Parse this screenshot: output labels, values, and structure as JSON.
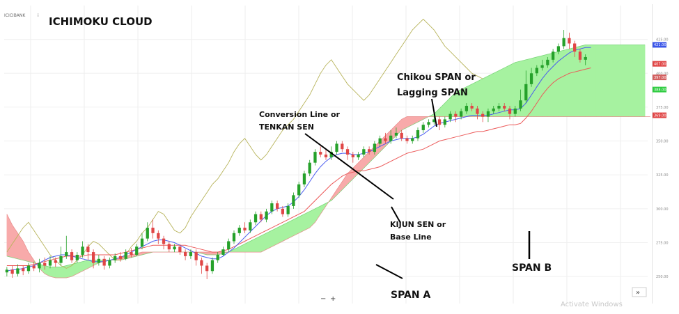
{
  "header": {
    "ticker": "ICICIBANK",
    "title": "ICHIMOKU CLOUD"
  },
  "annotations": {
    "chikou": [
      "Chikou SPAN or",
      "Lagging SPAN"
    ],
    "tenkan": [
      "Conversion Line or",
      "TENKAN SEN"
    ],
    "kijun": [
      "KIJUN SEN or",
      "Base Line"
    ],
    "span_a": "SPAN A",
    "span_b": "SPAN B"
  },
  "footer": {
    "watermark": "Activate Windows",
    "zoom_out": "−",
    "zoom_in": "+",
    "scroll_right": "»"
  },
  "colors": {
    "bullish_candle": "#25a12a",
    "bearish_candle": "#e04646",
    "conversion_line": "#4a5cf0",
    "base_line": "#ec5a5a",
    "lagging_line": "#b7b35a",
    "cloud_bullish": "#a6f2a0",
    "cloud_bearish": "#f8aaaa"
  },
  "chart_data": {
    "type": "candlestick",
    "title": "ICHIMOKU CLOUD",
    "y_range": [
      230,
      450
    ],
    "y_axis_ticks": [
      250,
      275,
      300,
      325,
      350,
      375,
      400,
      425
    ],
    "price_badges": [
      {
        "value": 421,
        "color": "#3b56e8"
      },
      {
        "value": 407,
        "color": "#e04646"
      },
      {
        "value": 397,
        "color": "#d35f5f"
      },
      {
        "value": 388,
        "color": "#2ecc40"
      },
      {
        "value": 369,
        "color": "#e04646"
      }
    ],
    "candles": [
      [
        253,
        255,
        250,
        257
      ],
      [
        255,
        252,
        249,
        258
      ],
      [
        252,
        256,
        250,
        259
      ],
      [
        256,
        254,
        251,
        258
      ],
      [
        254,
        258,
        252,
        260
      ],
      [
        258,
        256,
        254,
        261
      ],
      [
        256,
        260,
        253,
        263
      ],
      [
        260,
        258,
        255,
        264
      ],
      [
        258,
        262,
        256,
        265
      ],
      [
        262,
        260,
        257,
        264
      ],
      [
        260,
        265,
        258,
        272
      ],
      [
        265,
        268,
        263,
        280
      ],
      [
        268,
        262,
        260,
        270
      ],
      [
        262,
        266,
        260,
        268
      ],
      [
        266,
        272,
        264,
        276
      ],
      [
        272,
        268,
        262,
        274
      ],
      [
        268,
        260,
        256,
        270
      ],
      [
        260,
        263,
        258,
        266
      ],
      [
        263,
        258,
        255,
        265
      ],
      [
        258,
        262,
        256,
        264
      ],
      [
        262,
        265,
        260,
        267
      ],
      [
        265,
        263,
        261,
        268
      ],
      [
        263,
        268,
        262,
        270
      ],
      [
        268,
        266,
        264,
        271
      ],
      [
        266,
        272,
        265,
        274
      ],
      [
        272,
        278,
        270,
        282
      ],
      [
        278,
        286,
        276,
        290
      ],
      [
        286,
        282,
        278,
        292
      ],
      [
        282,
        278,
        274,
        284
      ],
      [
        278,
        274,
        270,
        280
      ],
      [
        274,
        270,
        268,
        276
      ],
      [
        270,
        272,
        268,
        274
      ],
      [
        272,
        268,
        266,
        274
      ],
      [
        268,
        265,
        262,
        270
      ],
      [
        265,
        268,
        263,
        270
      ],
      [
        268,
        262,
        258,
        270
      ],
      [
        262,
        258,
        252,
        264
      ],
      [
        258,
        254,
        248,
        260
      ],
      [
        254,
        262,
        252,
        264
      ],
      [
        262,
        266,
        260,
        268
      ],
      [
        266,
        270,
        265,
        272
      ],
      [
        270,
        276,
        268,
        278
      ],
      [
        276,
        282,
        274,
        284
      ],
      [
        282,
        286,
        280,
        288
      ],
      [
        286,
        284,
        282,
        290
      ],
      [
        284,
        290,
        282,
        292
      ],
      [
        290,
        296,
        288,
        298
      ],
      [
        296,
        292,
        290,
        298
      ],
      [
        292,
        298,
        290,
        300
      ],
      [
        298,
        304,
        296,
        306
      ],
      [
        304,
        300,
        298,
        306
      ],
      [
        300,
        296,
        294,
        302
      ],
      [
        296,
        302,
        294,
        304
      ],
      [
        302,
        310,
        300,
        312
      ],
      [
        310,
        318,
        308,
        320
      ],
      [
        318,
        326,
        316,
        328
      ],
      [
        326,
        334,
        324,
        336
      ],
      [
        334,
        342,
        332,
        344
      ],
      [
        342,
        340,
        338,
        346
      ],
      [
        340,
        338,
        336,
        344
      ],
      [
        338,
        342,
        336,
        346
      ],
      [
        342,
        348,
        340,
        350
      ],
      [
        348,
        344,
        342,
        350
      ],
      [
        344,
        340,
        336,
        346
      ],
      [
        340,
        338,
        334,
        342
      ],
      [
        338,
        340,
        336,
        342
      ],
      [
        340,
        344,
        338,
        346
      ],
      [
        344,
        342,
        340,
        346
      ],
      [
        342,
        348,
        340,
        350
      ],
      [
        348,
        352,
        346,
        354
      ],
      [
        352,
        350,
        348,
        356
      ],
      [
        350,
        354,
        348,
        358
      ],
      [
        354,
        356,
        352,
        360
      ],
      [
        356,
        352,
        350,
        358
      ],
      [
        352,
        350,
        348,
        354
      ],
      [
        350,
        352,
        348,
        354
      ],
      [
        352,
        358,
        350,
        360
      ],
      [
        358,
        362,
        356,
        364
      ],
      [
        362,
        364,
        360,
        366
      ],
      [
        364,
        366,
        362,
        368
      ],
      [
        366,
        362,
        358,
        368
      ],
      [
        362,
        366,
        360,
        368
      ],
      [
        366,
        370,
        364,
        372
      ],
      [
        370,
        368,
        364,
        372
      ],
      [
        368,
        372,
        366,
        374
      ],
      [
        372,
        376,
        370,
        378
      ],
      [
        376,
        374,
        372,
        378
      ],
      [
        374,
        370,
        366,
        376
      ],
      [
        370,
        368,
        364,
        372
      ],
      [
        368,
        372,
        364,
        374
      ],
      [
        372,
        374,
        370,
        376
      ],
      [
        374,
        376,
        372,
        378
      ],
      [
        376,
        374,
        372,
        378
      ],
      [
        374,
        370,
        366,
        376
      ],
      [
        370,
        374,
        368,
        376
      ],
      [
        374,
        380,
        372,
        388
      ],
      [
        380,
        392,
        378,
        402
      ],
      [
        392,
        400,
        390,
        404
      ],
      [
        400,
        404,
        398,
        406
      ],
      [
        404,
        406,
        402,
        410
      ],
      [
        406,
        410,
        404,
        412
      ],
      [
        410,
        416,
        408,
        418
      ],
      [
        416,
        420,
        414,
        422
      ],
      [
        420,
        426,
        418,
        432
      ],
      [
        426,
        422,
        418,
        430
      ],
      [
        422,
        416,
        412,
        424
      ],
      [
        416,
        410,
        408,
        418
      ],
      [
        410,
        412,
        406,
        414
      ]
    ],
    "conversion_line": [
      254,
      255,
      255,
      256,
      257,
      258,
      260,
      262,
      264,
      265,
      266,
      266,
      265,
      264,
      263,
      262,
      261,
      261,
      261,
      262,
      263,
      264,
      266,
      268,
      270,
      272,
      274,
      276,
      277,
      277,
      276,
      275,
      273,
      271,
      269,
      267,
      265,
      264,
      263,
      263,
      265,
      268,
      271,
      275,
      279,
      283,
      287,
      291,
      295,
      298,
      300,
      301,
      302,
      305,
      309,
      314,
      320,
      326,
      331,
      335,
      338,
      340,
      341,
      341,
      340,
      340,
      341,
      342,
      344,
      346,
      348,
      350,
      351,
      352,
      352,
      352,
      353,
      355,
      358,
      361,
      363,
      364,
      365,
      366,
      367,
      368,
      369,
      369,
      369,
      369,
      370,
      371,
      372,
      373,
      373,
      374,
      378,
      384,
      390,
      396,
      401,
      405,
      409,
      412,
      415,
      417,
      418,
      419,
      419
    ],
    "base_line": [
      258,
      258,
      258,
      258,
      258,
      259,
      260,
      261,
      262,
      263,
      264,
      265,
      265,
      265,
      265,
      266,
      266,
      266,
      266,
      266,
      266,
      267,
      268,
      269,
      270,
      271,
      272,
      273,
      273,
      273,
      273,
      273,
      273,
      273,
      272,
      271,
      270,
      269,
      268,
      268,
      269,
      270,
      272,
      274,
      276,
      278,
      280,
      282,
      284,
      286,
      288,
      290,
      292,
      294,
      296,
      298,
      302,
      306,
      310,
      314,
      318,
      321,
      324,
      326,
      327,
      328,
      328,
      329,
      330,
      331,
      333,
      335,
      337,
      339,
      341,
      342,
      343,
      344,
      346,
      348,
      350,
      351,
      352,
      353,
      354,
      355,
      356,
      357,
      357,
      358,
      359,
      360,
      361,
      362,
      362,
      363,
      367,
      372,
      378,
      384,
      389,
      393,
      396,
      398,
      400,
      401,
      402,
      403,
      404
    ],
    "lagging_line": [
      268,
      274,
      280,
      286,
      290,
      284,
      278,
      272,
      266,
      262,
      258,
      256,
      258,
      262,
      266,
      272,
      276,
      274,
      270,
      266,
      262,
      262,
      266,
      272,
      276,
      282,
      286,
      292,
      298,
      296,
      290,
      284,
      282,
      286,
      294,
      300,
      306,
      312,
      318,
      322,
      328,
      334,
      342,
      348,
      352,
      346,
      340,
      336,
      340,
      346,
      352,
      358,
      362,
      366,
      372,
      378,
      384,
      392,
      400,
      406,
      410,
      404,
      398,
      392,
      388,
      384,
      380,
      384,
      390,
      396,
      402,
      408,
      414,
      420,
      426,
      432,
      436,
      440,
      436,
      432,
      426,
      420,
      416,
      412,
      408,
      404,
      400,
      398,
      396
    ],
    "span_a": [
      265,
      264,
      263,
      262,
      261,
      260,
      259,
      258,
      257,
      257,
      257,
      258,
      259,
      260,
      261,
      262,
      262,
      262,
      262,
      262,
      262,
      262,
      263,
      264,
      265,
      266,
      267,
      268,
      268,
      268,
      268,
      268,
      268,
      268,
      268,
      268,
      267,
      266,
      266,
      266,
      267,
      268,
      270,
      272,
      274,
      276,
      278,
      280,
      282,
      284,
      286,
      288,
      290,
      292,
      294,
      296,
      298,
      300,
      302,
      304,
      306,
      310,
      314,
      318,
      322,
      326,
      330,
      334,
      338,
      342,
      346,
      350,
      354,
      358,
      360,
      362,
      364,
      366,
      368,
      370,
      374,
      378,
      382,
      386,
      388,
      390,
      392,
      394,
      396,
      398,
      400,
      402,
      404,
      406,
      408,
      409,
      410,
      411,
      412,
      413,
      414,
      415,
      416,
      417,
      418,
      419,
      420,
      421,
      421,
      421,
      421,
      421,
      421,
      421,
      421,
      421,
      421,
      421,
      421
    ],
    "span_b": [
      296,
      288,
      282,
      276,
      268,
      262,
      256,
      252,
      250,
      249,
      249,
      249,
      250,
      252,
      254,
      256,
      258,
      260,
      261,
      262,
      263,
      264,
      265,
      266,
      267,
      268,
      268,
      268,
      268,
      268,
      268,
      268,
      268,
      268,
      268,
      268,
      268,
      268,
      268,
      268,
      268,
      268,
      268,
      268,
      268,
      268,
      268,
      268,
      270,
      272,
      274,
      276,
      278,
      280,
      282,
      284,
      286,
      290,
      296,
      302,
      308,
      314,
      320,
      326,
      330,
      334,
      338,
      342,
      346,
      350,
      354,
      358,
      362,
      366,
      368,
      368,
      368,
      368,
      368,
      368,
      368,
      368,
      368,
      368,
      368,
      368,
      368,
      368,
      368,
      368,
      368,
      368,
      368,
      368,
      368,
      368,
      368,
      368,
      368,
      368,
      368,
      368,
      368,
      368,
      368,
      368,
      368,
      368,
      368,
      368,
      368,
      368,
      368,
      368,
      368,
      368,
      368,
      368,
      368,
      368
    ]
  }
}
